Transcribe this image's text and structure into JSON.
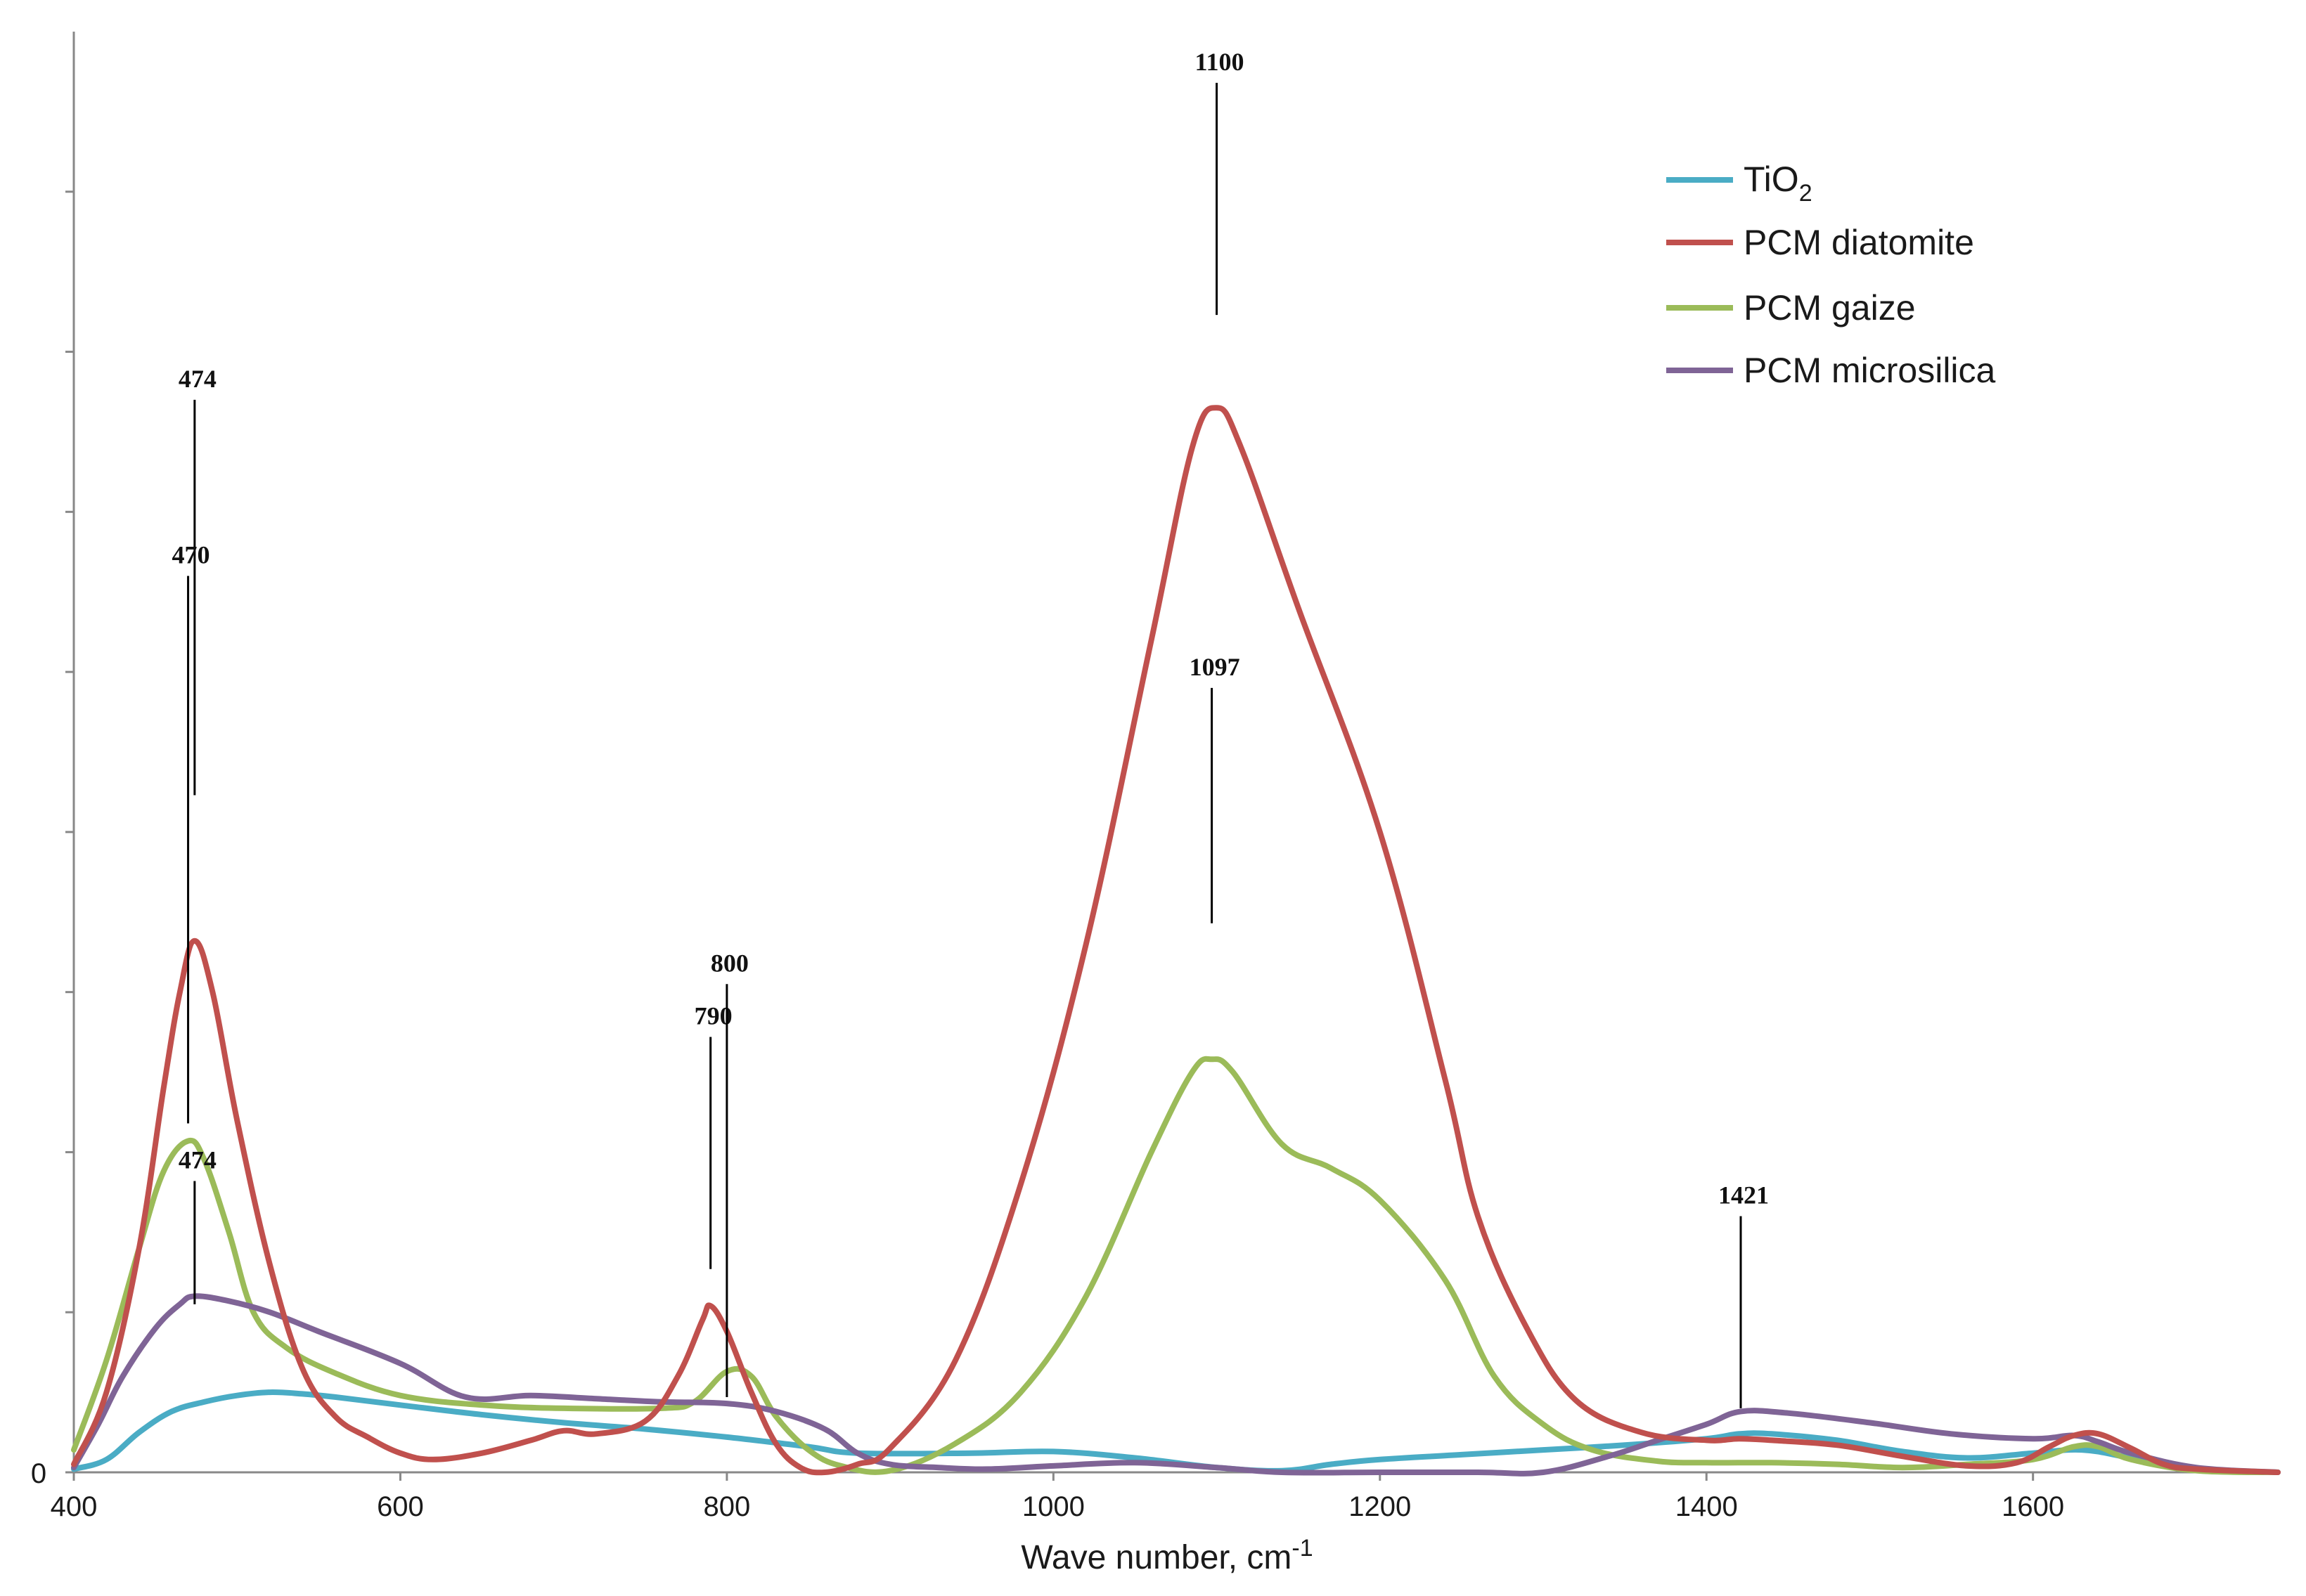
{
  "chart_data": {
    "type": "line",
    "title": "",
    "xlabel": "Wave number, cm",
    "xlabel_superscript": "-1",
    "ylabel": "",
    "xlim": [
      400,
      1750
    ],
    "ylim": [
      0,
      900
    ],
    "x_ticks": [
      400,
      600,
      800,
      1000,
      1200,
      1400,
      1600
    ],
    "y_tick_label": "0",
    "grid": false,
    "legend_position": "top-right",
    "series": [
      {
        "name": "TiO",
        "name_subscript": "2",
        "color": "#4aacc5",
        "points": [
          [
            400,
            2
          ],
          [
            420,
            8
          ],
          [
            440,
            25
          ],
          [
            460,
            38
          ],
          [
            480,
            44
          ],
          [
            500,
            48
          ],
          [
            520,
            50
          ],
          [
            540,
            49
          ],
          [
            560,
            47
          ],
          [
            600,
            42
          ],
          [
            650,
            36
          ],
          [
            700,
            31
          ],
          [
            750,
            27
          ],
          [
            800,
            22
          ],
          [
            850,
            16
          ],
          [
            880,
            12
          ],
          [
            950,
            12
          ],
          [
            1000,
            13
          ],
          [
            1050,
            9
          ],
          [
            1100,
            3
          ],
          [
            1140,
            1
          ],
          [
            1170,
            5
          ],
          [
            1200,
            8
          ],
          [
            1250,
            11
          ],
          [
            1300,
            14
          ],
          [
            1350,
            17
          ],
          [
            1400,
            21
          ],
          [
            1420,
            24
          ],
          [
            1440,
            24
          ],
          [
            1480,
            20
          ],
          [
            1520,
            13
          ],
          [
            1560,
            9
          ],
          [
            1600,
            12
          ],
          [
            1630,
            14
          ],
          [
            1660,
            9
          ],
          [
            1700,
            2
          ],
          [
            1750,
            0
          ]
        ]
      },
      {
        "name": "PCM diatomite",
        "color": "#c0504d",
        "points": [
          [
            400,
            5
          ],
          [
            420,
            50
          ],
          [
            440,
            140
          ],
          [
            455,
            240
          ],
          [
            465,
            300
          ],
          [
            474,
            332
          ],
          [
            485,
            300
          ],
          [
            500,
            220
          ],
          [
            520,
            130
          ],
          [
            540,
            65
          ],
          [
            560,
            35
          ],
          [
            580,
            22
          ],
          [
            600,
            12
          ],
          [
            620,
            8
          ],
          [
            650,
            12
          ],
          [
            680,
            20
          ],
          [
            700,
            26
          ],
          [
            720,
            24
          ],
          [
            750,
            32
          ],
          [
            770,
            60
          ],
          [
            785,
            95
          ],
          [
            790,
            104
          ],
          [
            800,
            88
          ],
          [
            815,
            50
          ],
          [
            830,
            18
          ],
          [
            845,
            3
          ],
          [
            860,
            0
          ],
          [
            880,
            5
          ],
          [
            900,
            15
          ],
          [
            940,
            70
          ],
          [
            980,
            180
          ],
          [
            1020,
            330
          ],
          [
            1060,
            520
          ],
          [
            1085,
            640
          ],
          [
            1100,
            665
          ],
          [
            1115,
            640
          ],
          [
            1150,
            540
          ],
          [
            1200,
            400
          ],
          [
            1240,
            245
          ],
          [
            1260,
            160
          ],
          [
            1290,
            90
          ],
          [
            1320,
            45
          ],
          [
            1360,
            25
          ],
          [
            1400,
            20
          ],
          [
            1420,
            21
          ],
          [
            1440,
            20
          ],
          [
            1480,
            17
          ],
          [
            1520,
            10
          ],
          [
            1560,
            4
          ],
          [
            1590,
            6
          ],
          [
            1610,
            16
          ],
          [
            1625,
            23
          ],
          [
            1640,
            24
          ],
          [
            1660,
            15
          ],
          [
            1680,
            5
          ],
          [
            1700,
            2
          ],
          [
            1750,
            0
          ]
        ]
      },
      {
        "name": "PCM gaize",
        "color": "#9bbb59",
        "points": [
          [
            400,
            14
          ],
          [
            420,
            70
          ],
          [
            440,
            140
          ],
          [
            455,
            188
          ],
          [
            470,
            207
          ],
          [
            480,
            195
          ],
          [
            495,
            150
          ],
          [
            510,
            100
          ],
          [
            530,
            78
          ],
          [
            560,
            62
          ],
          [
            600,
            48
          ],
          [
            650,
            42
          ],
          [
            700,
            40
          ],
          [
            760,
            40
          ],
          [
            780,
            44
          ],
          [
            800,
            63
          ],
          [
            815,
            60
          ],
          [
            830,
            35
          ],
          [
            850,
            14
          ],
          [
            870,
            4
          ],
          [
            900,
            1
          ],
          [
            940,
            18
          ],
          [
            980,
            50
          ],
          [
            1020,
            110
          ],
          [
            1060,
            200
          ],
          [
            1085,
            250
          ],
          [
            1097,
            258
          ],
          [
            1110,
            250
          ],
          [
            1140,
            205
          ],
          [
            1170,
            190
          ],
          [
            1200,
            170
          ],
          [
            1240,
            120
          ],
          [
            1270,
            60
          ],
          [
            1300,
            30
          ],
          [
            1330,
            14
          ],
          [
            1370,
            7
          ],
          [
            1400,
            6
          ],
          [
            1440,
            6
          ],
          [
            1480,
            5
          ],
          [
            1520,
            3
          ],
          [
            1560,
            5
          ],
          [
            1600,
            8
          ],
          [
            1625,
            16
          ],
          [
            1640,
            16
          ],
          [
            1660,
            8
          ],
          [
            1700,
            1
          ],
          [
            1750,
            0
          ]
        ]
      },
      {
        "name": "PCM microsilica",
        "color": "#7f6496",
        "points": [
          [
            400,
            3
          ],
          [
            415,
            30
          ],
          [
            430,
            60
          ],
          [
            450,
            90
          ],
          [
            465,
            105
          ],
          [
            474,
            110
          ],
          [
            495,
            107
          ],
          [
            520,
            100
          ],
          [
            550,
            88
          ],
          [
            600,
            68
          ],
          [
            640,
            47
          ],
          [
            680,
            48
          ],
          [
            720,
            46
          ],
          [
            760,
            44
          ],
          [
            800,
            43
          ],
          [
            830,
            38
          ],
          [
            860,
            27
          ],
          [
            880,
            12
          ],
          [
            900,
            5
          ],
          [
            930,
            3
          ],
          [
            960,
            2
          ],
          [
            1000,
            4
          ],
          [
            1050,
            6
          ],
          [
            1100,
            3
          ],
          [
            1140,
            0
          ],
          [
            1200,
            0
          ],
          [
            1260,
            0
          ],
          [
            1300,
            0
          ],
          [
            1340,
            10
          ],
          [
            1370,
            20
          ],
          [
            1400,
            30
          ],
          [
            1421,
            38
          ],
          [
            1450,
            37
          ],
          [
            1500,
            31
          ],
          [
            1550,
            24
          ],
          [
            1600,
            21
          ],
          [
            1625,
            23
          ],
          [
            1640,
            19
          ],
          [
            1660,
            12
          ],
          [
            1700,
            3
          ],
          [
            1750,
            0
          ]
        ]
      }
    ],
    "annotations": [
      {
        "label": "474",
        "x": 474,
        "y_top": 670,
        "y_bottom": 423
      },
      {
        "label": "470",
        "x": 470,
        "y_top": 560,
        "y_bottom": 218
      },
      {
        "label": "474",
        "x": 474,
        "y_top": 182,
        "y_bottom": 105
      },
      {
        "label": "790",
        "x": 790,
        "y_top": 272,
        "y_bottom": 127
      },
      {
        "label": "800",
        "x": 800,
        "y_top": 305,
        "y_bottom": 47
      },
      {
        "label": "1100",
        "x": 1100,
        "y_top": 868,
        "y_bottom": 723
      },
      {
        "label": "1097",
        "x": 1097,
        "y_top": 490,
        "y_bottom": 343
      },
      {
        "label": "1421",
        "x": 1421,
        "y_top": 160,
        "y_bottom": 40
      }
    ]
  }
}
